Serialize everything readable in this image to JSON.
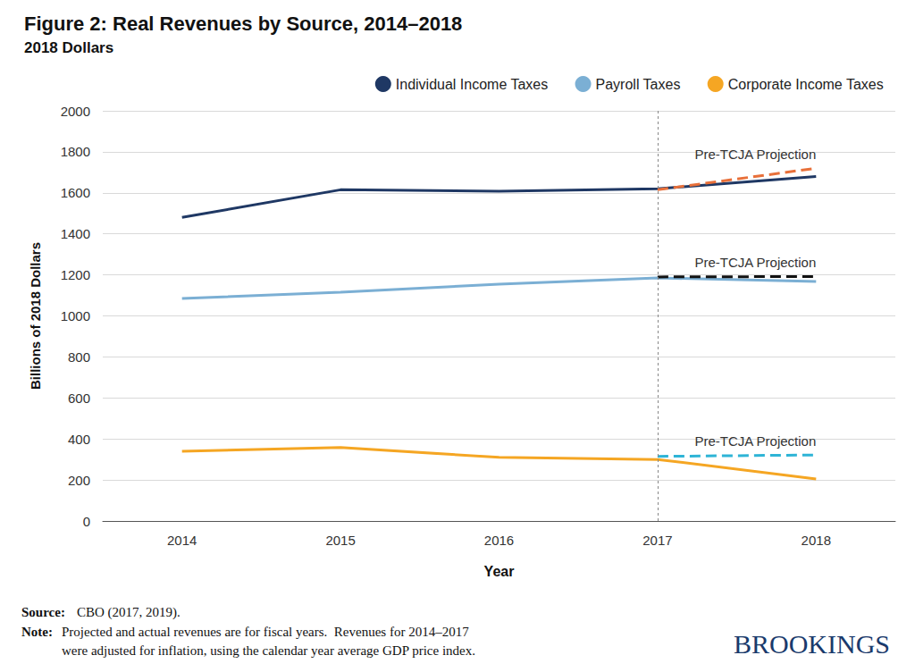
{
  "chart_data": {
    "type": "line",
    "title": "Figure 2: Real Revenues by Source, 2014–2018",
    "subtitle": "2018 Dollars",
    "x_label": "Year",
    "y_label": "Billions of 2018 Dollars",
    "categories": [
      "2014",
      "2015",
      "2016",
      "2017",
      "2018"
    ],
    "series": [
      {
        "name": "Individual Income Taxes",
        "color": "#1f3864",
        "line_style": "solid",
        "values": [
          1480,
          1615,
          1608,
          1620,
          1680
        ]
      },
      {
        "name": "Payroll Taxes",
        "color": "#7bafd4",
        "line_style": "solid",
        "values": [
          1085,
          1115,
          1155,
          1185,
          1168
        ]
      },
      {
        "name": "Corporate Income Taxes",
        "color": "#f5a623",
        "line_style": "solid",
        "values": [
          340,
          358,
          310,
          300,
          205
        ]
      },
      {
        "name": "Pre-TCJA Projection",
        "color": "#e8703a",
        "line_style": "dashed",
        "values": [
          null,
          null,
          null,
          1615,
          1720
        ]
      },
      {
        "name": "Pre-TCJA Projection",
        "color": "#111111",
        "line_style": "dashed",
        "values": [
          null,
          null,
          null,
          1190,
          1192
        ]
      },
      {
        "name": "Pre-TCJA Projection",
        "color": "#2eb4d6",
        "line_style": "dashed",
        "values": [
          null,
          null,
          null,
          315,
          322
        ]
      }
    ],
    "ylim": [
      0,
      2000
    ],
    "yticks": [
      0,
      200,
      400,
      600,
      800,
      1000,
      1200,
      1400,
      1600,
      1800,
      2000
    ],
    "grid": true,
    "legend": "top-right",
    "source_label": "Source:",
    "source": "CBO (2017, 2019).",
    "note_label": "Note:",
    "note": [
      "Projected and actual revenues are for fiscal years.  Revenues for 2014–2017",
      "were adjusted for inflation, using the calendar year average GDP price index."
    ],
    "logo": "BROOKINGS"
  }
}
